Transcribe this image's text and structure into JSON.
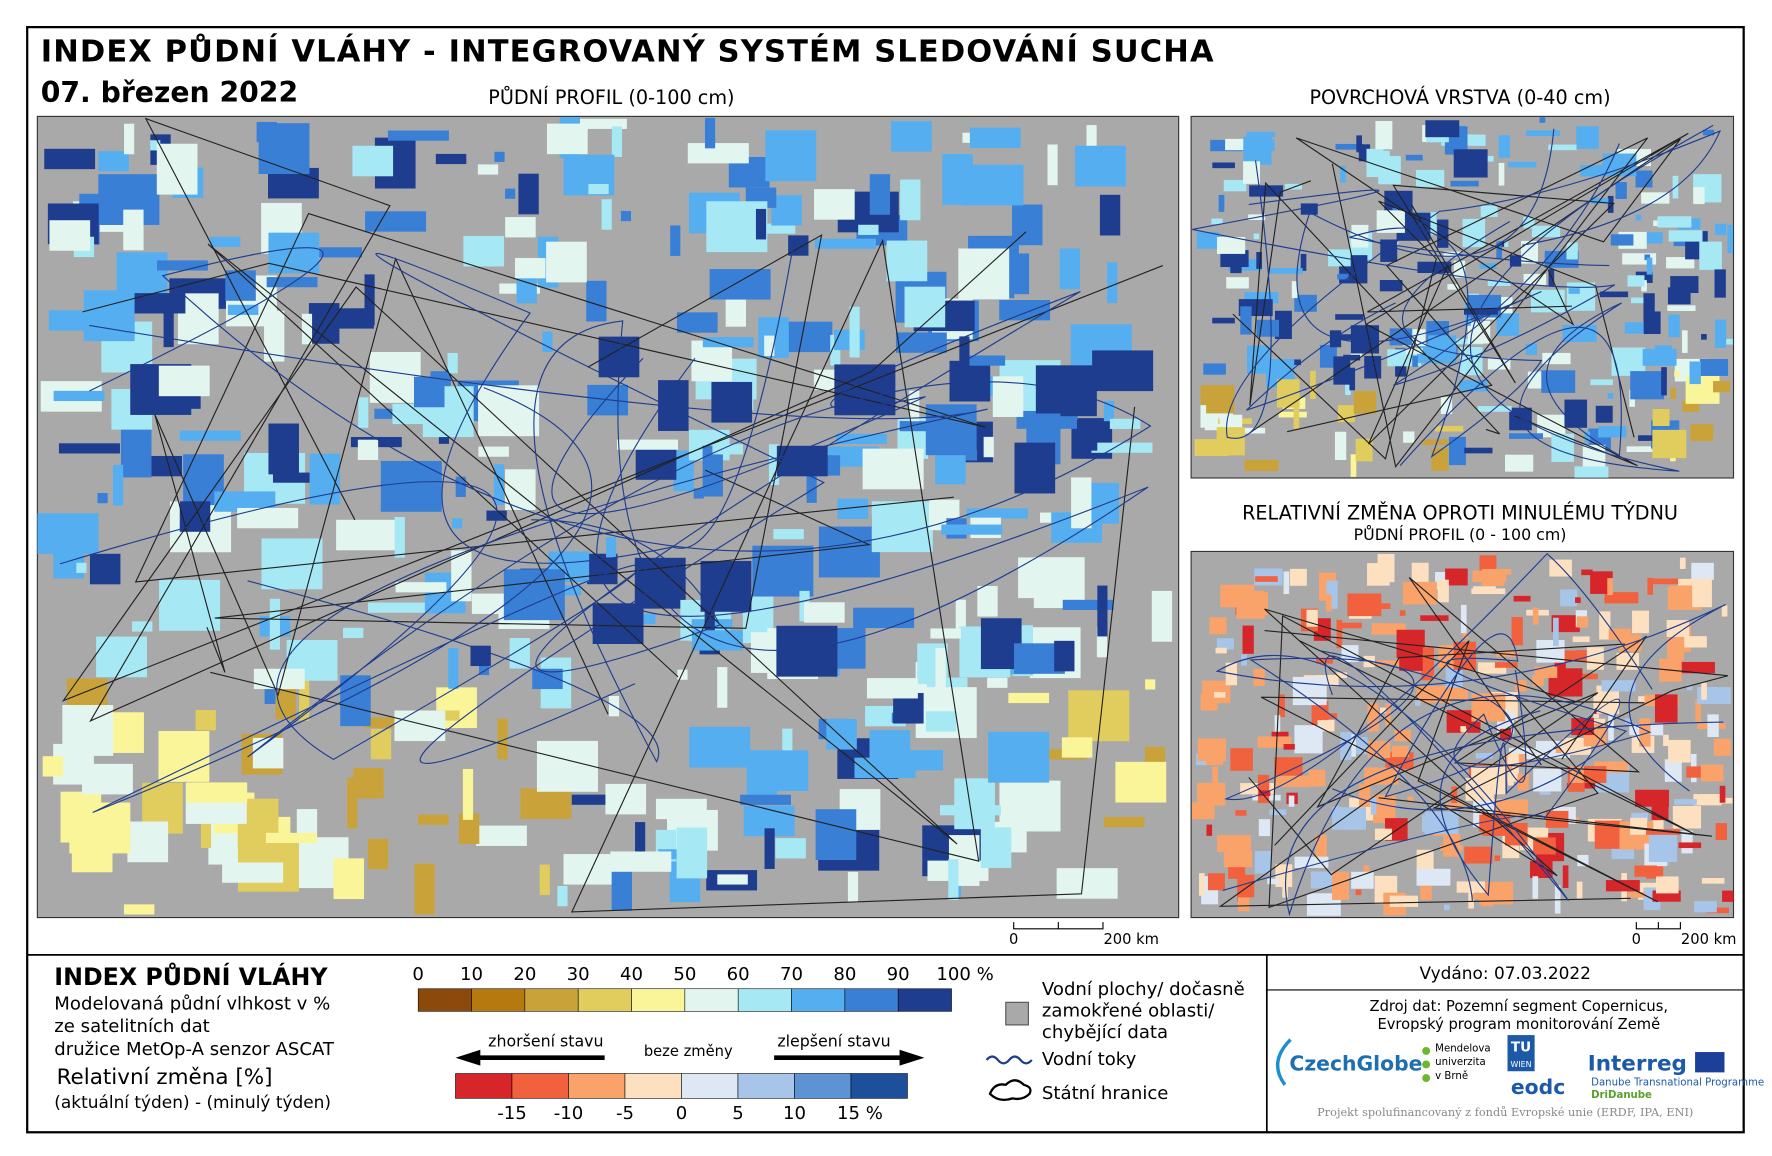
{
  "header": {
    "title": "INDEX PŮDNÍ VLÁHY - INTEGROVANÝ SYSTÉM SLEDOVÁNÍ SUCHA",
    "date": "07. březen 2022"
  },
  "maps": [
    {
      "title": "PŮDNÍ PROFIL (0-100 cm)"
    },
    {
      "title": "POVRCHOVÁ VRSTVA (0-40 cm)"
    },
    {
      "title": "RELATIVNÍ ZMĚNA OPROTI MINULÉMU TÝDNU",
      "subtitle": "PŮDNÍ PROFIL (0 - 100 cm)"
    }
  ],
  "scale_bars": [
    {
      "start": "0",
      "end": "200 km"
    },
    {
      "start": "0",
      "end": "200 km"
    }
  ],
  "legend": {
    "title": "INDEX PŮDNÍ VLÁHY",
    "description": [
      "Modelovaná půdní vlhkost v %",
      "ze satelitních dat",
      "družice MetOp-A senzor ASCAT"
    ],
    "change_title": "Relativní změna [%]",
    "change_description": "(aktuální týden) - (minulý týden)",
    "index_scale": {
      "labels": [
        "0",
        "10",
        "20",
        "30",
        "40",
        "50",
        "60",
        "70",
        "80",
        "90",
        "100 %"
      ],
      "colors": [
        "#8b4a0c",
        "#b5790f",
        "#c9a33a",
        "#e0cd5e",
        "#fbf59a",
        "#e2f6ef",
        "#a6e9f5",
        "#55aef0",
        "#3a7fd6",
        "#1f3d8f"
      ]
    },
    "change_scale": {
      "labels": [
        "-15",
        "-10",
        "-5",
        "0",
        "5",
        "10",
        "15 %"
      ],
      "colors": [
        "#d7262a",
        "#f2613e",
        "#f9a36b",
        "#fde0c0",
        "#dde8f4",
        "#a7c5e8",
        "#5d92d4",
        "#1e4f9a"
      ],
      "worse": "zhoršení stavu",
      "none": "beze změny",
      "better": "zlepšení stavu"
    },
    "symbols": {
      "missing": [
        "Vodní plochy/ dočasně",
        "zamokřené oblasti/",
        "chybějící data"
      ],
      "rivers": "Vodní toky",
      "borders": "Státní hranice"
    }
  },
  "footer": {
    "issued": "Vydáno: 07.03.2022",
    "source": [
      "Zdroj dat: Pozemní segment Copernicus,",
      "Evropský program monitorování Země"
    ],
    "logos": {
      "czechglobe": "CzechGlobe",
      "mendel": [
        "Mendelova",
        "univerzita",
        "v Brně"
      ],
      "tu": [
        "TU",
        "WIEN"
      ],
      "eodc": "eodc",
      "interreg": "Interreg",
      "programme": "Danube Transnational Programme",
      "dridanube": "DriDanube"
    },
    "funding": "Projekt spolufinancovaný z fondů Evropské unie (ERDF, IPA, ENI)"
  }
}
